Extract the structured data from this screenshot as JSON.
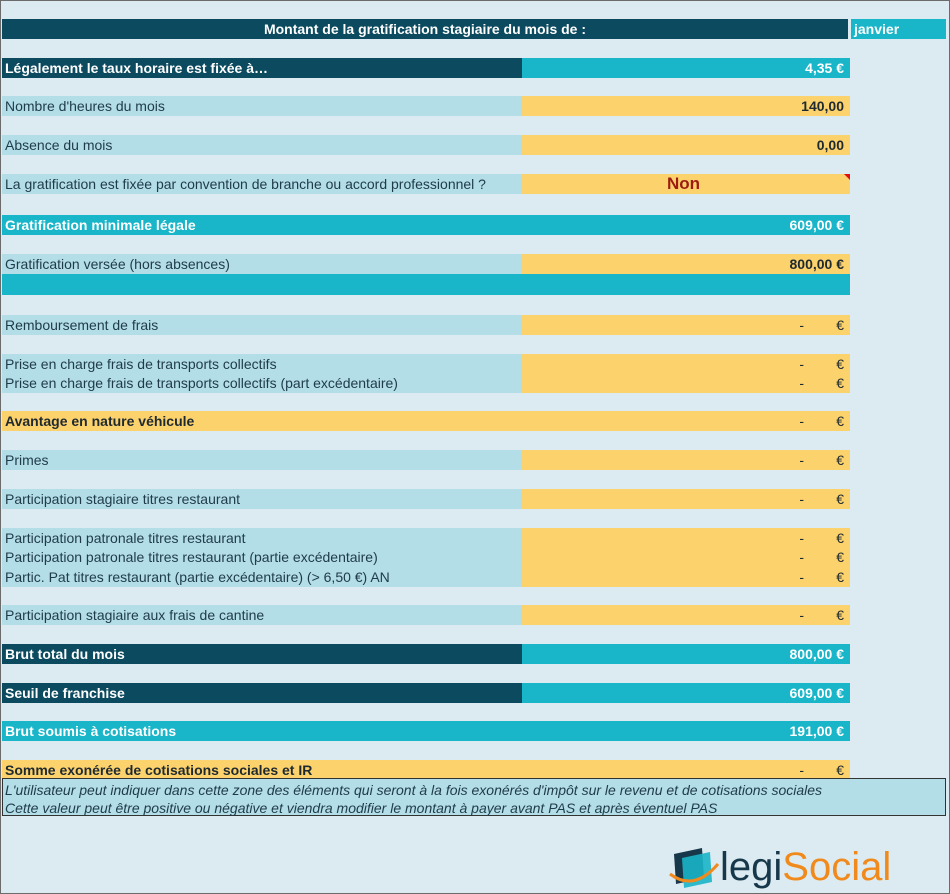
{
  "header": {
    "title": "Montant de la gratification stagiaire du mois de :",
    "month": "janvier"
  },
  "rows": {
    "taux": {
      "label": "Légalement le taux horaire est fixée à…",
      "value": "4,35 €"
    },
    "heures": {
      "label": "Nombre d'heures du mois",
      "value": "140,00"
    },
    "absence": {
      "label": "Absence du mois",
      "value": "0,00"
    },
    "convention": {
      "label": "La gratification est fixée par convention de branche ou accord professionnel ?",
      "value": "Non"
    },
    "minimale": {
      "label": "Gratification minimale légale",
      "value": "609,00 €"
    },
    "versee": {
      "label": "Gratification versée (hors absences)",
      "value": "800,00 €"
    },
    "frais": {
      "label": "Remboursement de frais"
    },
    "transports": {
      "label": "Prise en charge frais de transports collectifs"
    },
    "transports_exc": {
      "label": "Prise en charge frais de transports collectifs (part excédentaire)"
    },
    "avantage": {
      "label": "Avantage en nature véhicule"
    },
    "primes": {
      "label": "Primes"
    },
    "tr_stagiaire": {
      "label": "Participation stagiaire titres restaurant"
    },
    "tr_patronale": {
      "label": "Participation patronale titres restaurant"
    },
    "tr_patronale_exc": {
      "label": "Participation patronale titres restaurant (partie excédentaire)"
    },
    "tr_partic": {
      "label": "Partic. Pat titres restaurant (partie excédentaire) (> 6,50 €) AN"
    },
    "cantine": {
      "label": "Participation stagiaire aux frais de cantine"
    },
    "brut_total": {
      "label": "Brut total du mois",
      "value": "800,00 €"
    },
    "seuil": {
      "label": "Seuil de franchise",
      "value": "609,00 €"
    },
    "brut_soumis": {
      "label": "Brut soumis à cotisations",
      "value": "191,00 €"
    },
    "exoneree": {
      "label": "Somme exonérée de cotisations sociales et IR"
    }
  },
  "empty_value": {
    "dash": "-",
    "euro": "€"
  },
  "notes": {
    "line1": "L'utilisateur peut indiquer dans cette zone des éléments qui seront à la fois exonérés d'impôt sur le revenu et de cotisations sociales",
    "line2": "Cette valeur peut être positive ou négative et viendra modifier le montant à payer avant PAS et après éventuel PAS"
  },
  "logo": {
    "text_part1": "legi",
    "text_part2": "Social"
  },
  "colors": {
    "dark_teal": "#0b4a5f",
    "teal": "#19b5c8",
    "light_blue": "#b3dde7",
    "yellow": "#fcd26c",
    "non_red": "#9c1c12",
    "logo_orange": "#f08a1c"
  }
}
